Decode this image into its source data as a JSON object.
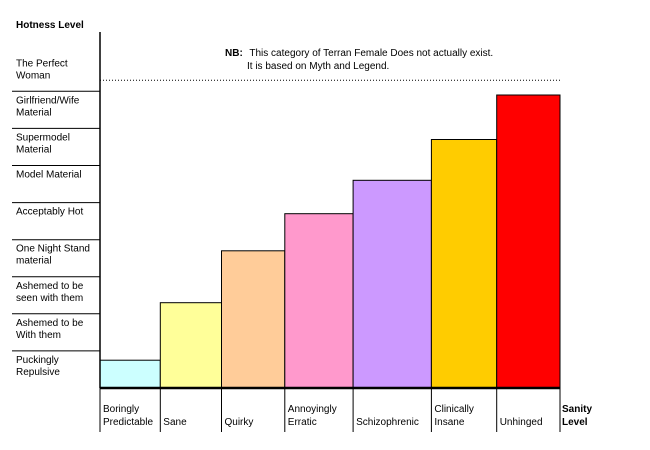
{
  "chart_data": {
    "type": "bar",
    "ylabel": "Hotness Level",
    "xlabel": "Sanity Level",
    "categories": [
      "Boringly Predictable",
      "Sane",
      "Quirky",
      "Annoyingly Erratic",
      "Schizophrenic",
      "Clinically Insane",
      "Unhinged"
    ],
    "y_levels": [
      "Puckingly Repulsive",
      "Ashemed to be With them",
      "Ashemed to be seen with them",
      "One Night Stand material",
      "Acceptably Hot",
      "Model Material",
      "Supermodel Material",
      "Girlfriend/Wife Material",
      "The Perfect Woman"
    ],
    "values": [
      0.75,
      2.3,
      3.7,
      4.7,
      5.6,
      6.7,
      7.9
    ],
    "ylim": [
      0,
      9.6
    ],
    "colors": [
      "#ccffff",
      "#ffff99",
      "#ffcc99",
      "#ff99cc",
      "#cc99ff",
      "#ffcc00",
      "#ff0000"
    ],
    "reference_line": {
      "value": 8.3,
      "style": "dotted"
    },
    "annotation": {
      "label": "NB:",
      "line1": "This category of Terran Female Does not actually exist.",
      "line2": "It is based on Myth and Legend."
    },
    "grid": false,
    "legend": "none"
  }
}
